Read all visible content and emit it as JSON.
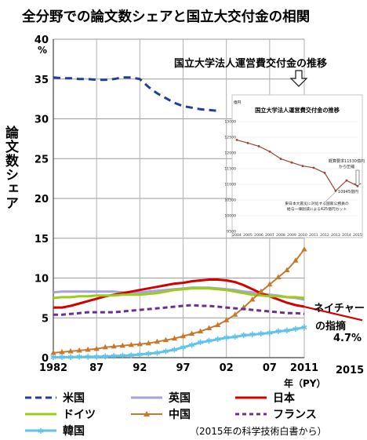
{
  "title": "全分野での論文数シェアと国立大交付金の相関",
  "inset_banner": "国立大学法人運営費交付金の推移",
  "y_axis_label": "論文数シェア",
  "y_unit": "%",
  "x_unit": "年（PY）",
  "extra_year": "2015",
  "annotation": {
    "line1": "ネイチャー",
    "line2": "の指摘",
    "value": "4.7%"
  },
  "source_note": "（2015年の科学技術白書から）",
  "colors": {
    "us": "#1f3f9c",
    "uk": "#a3a3dd",
    "japan": "#d40000",
    "germany": "#9acc19",
    "china": "#c8782a",
    "france": "#6b2f93",
    "korea": "#5fc3ea",
    "inset_line": "#a0413e"
  },
  "chart_data": [
    {
      "type": "line",
      "ylabel": "論文数シェア",
      "ylim": [
        0,
        40
      ],
      "y_ticks": [
        "0",
        "5",
        "10",
        "15",
        "20",
        "25",
        "30",
        "35",
        "40"
      ],
      "x_ticks": [
        "1982",
        "87",
        "92",
        "97",
        "02",
        "07",
        "2011"
      ],
      "xlim": [
        1982,
        2011
      ],
      "x": [
        1982,
        1983,
        1984,
        1985,
        1986,
        1987,
        1988,
        1989,
        1990,
        1991,
        1992,
        1993,
        1994,
        1995,
        1996,
        1997,
        1998,
        1999,
        2000,
        2001,
        2002,
        2003,
        2004,
        2005,
        2006,
        2007,
        2008,
        2009,
        2010,
        2011
      ],
      "series": [
        {
          "name": "米国",
          "key": "us",
          "style": "dash",
          "values": [
            35.2,
            35.1,
            35.1,
            35.0,
            35.0,
            34.9,
            34.9,
            35.0,
            35.2,
            35.2,
            35.0,
            34.0,
            33.2,
            32.6,
            32.0,
            31.6,
            31.4,
            31.2,
            31.1,
            31.0,
            null,
            null,
            null,
            null,
            null,
            null,
            null,
            null,
            null,
            null
          ]
        },
        {
          "name": "英国",
          "key": "uk",
          "style": "solid",
          "values": [
            8.2,
            8.3,
            8.3,
            8.3,
            8.3,
            8.3,
            8.3,
            8.3,
            8.2,
            8.2,
            8.2,
            8.3,
            8.4,
            8.5,
            8.6,
            8.7,
            8.8,
            8.8,
            8.8,
            8.7,
            8.6,
            8.5,
            8.3,
            8.2,
            8.0,
            7.9,
            7.8,
            7.6,
            7.5,
            7.3
          ]
        },
        {
          "name": "日本",
          "key": "japan",
          "style": "solid",
          "values": [
            6.3,
            6.3,
            6.5,
            6.8,
            7.1,
            7.4,
            7.7,
            7.9,
            8.1,
            8.3,
            8.5,
            8.7,
            8.9,
            9.1,
            9.3,
            9.4,
            9.6,
            9.7,
            9.8,
            9.8,
            9.7,
            9.5,
            9.1,
            8.6,
            8.1,
            7.7,
            7.3,
            6.9,
            6.6,
            6.4
          ]
        },
        {
          "name": "ドイツ",
          "key": "germany",
          "style": "solid",
          "values": [
            7.5,
            7.6,
            7.6,
            7.7,
            7.7,
            7.8,
            7.8,
            7.8,
            7.9,
            7.9,
            7.9,
            8.0,
            8.1,
            8.3,
            8.5,
            8.6,
            8.7,
            8.7,
            8.7,
            8.6,
            8.5,
            8.3,
            8.1,
            7.9,
            7.8,
            7.7,
            7.7,
            7.6,
            7.6,
            7.5
          ]
        },
        {
          "name": "中国",
          "key": "china",
          "style": "triangle",
          "values": [
            0.6,
            0.7,
            0.8,
            0.9,
            1.0,
            1.1,
            1.3,
            1.4,
            1.5,
            1.6,
            1.7,
            1.8,
            2.0,
            2.2,
            2.4,
            2.7,
            3.0,
            3.3,
            3.7,
            4.1,
            4.7,
            5.4,
            6.3,
            7.3,
            8.3,
            9.2,
            10.1,
            11.0,
            12.2,
            13.6
          ]
        },
        {
          "name": "フランス",
          "key": "france",
          "style": "dash",
          "values": [
            5.4,
            5.4,
            5.5,
            5.6,
            5.7,
            5.7,
            5.7,
            5.7,
            5.8,
            5.9,
            6.0,
            6.1,
            6.2,
            6.3,
            6.4,
            6.5,
            6.6,
            6.5,
            6.5,
            6.4,
            6.3,
            6.2,
            6.1,
            6.0,
            5.9,
            5.8,
            5.7,
            5.6,
            5.6,
            5.5
          ]
        },
        {
          "name": "韓国",
          "key": "korea",
          "style": "stars",
          "values": [
            0.05,
            0.06,
            0.07,
            0.08,
            0.1,
            0.12,
            0.15,
            0.2,
            0.25,
            0.3,
            0.4,
            0.5,
            0.6,
            0.8,
            1.0,
            1.3,
            1.6,
            1.9,
            2.1,
            2.3,
            2.5,
            2.6,
            2.8,
            2.9,
            3.0,
            3.1,
            3.3,
            3.4,
            3.6,
            3.8
          ]
        }
      ],
      "extension": {
        "name": "日本",
        "from": [
          2011,
          6.4
        ],
        "to": [
          2015,
          4.7
        ]
      }
    },
    {
      "type": "line",
      "title": "国立大学法人運営費交付金の推移",
      "y_unit": "億円",
      "ylim": [
        9500,
        13000
      ],
      "y_ticks": [
        "13000",
        "12500",
        "12000",
        "11500",
        "11000",
        "10500",
        "10000",
        "9500"
      ],
      "x": [
        "2004",
        "2005",
        "2006",
        "2007",
        "2008",
        "2009",
        "2010",
        "2011",
        "2012",
        "2013",
        "2014",
        "2015"
      ],
      "values": [
        12415,
        12317,
        12214,
        12043,
        11813,
        11695,
        11585,
        11528,
        11366,
        10792,
        11123,
        10945
      ],
      "annotations": [
        "概算要求11530億円 から圧縮",
        "10945億円",
        "東日本大震災に対処する国家公務員の 給与一律削減による425億円カット"
      ]
    }
  ]
}
